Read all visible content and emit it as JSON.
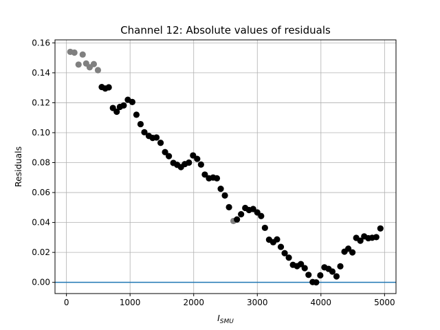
{
  "chart_data": {
    "type": "scatter",
    "title": "Channel 12: Absolute values of residuals",
    "xlabel_main": "I",
    "xlabel_sub": "SMU",
    "ylabel": "Residuals",
    "xlim": [
      -180,
      5180
    ],
    "ylim": [
      -0.0075,
      0.162
    ],
    "xticks": [
      0,
      1000,
      2000,
      3000,
      4000,
      5000
    ],
    "yticks": [
      0.0,
      0.02,
      0.04,
      0.06,
      0.08,
      0.1,
      0.12,
      0.14,
      0.16
    ],
    "ytick_labels": [
      "0.00",
      "0.02",
      "0.04",
      "0.06",
      "0.08",
      "0.10",
      "0.12",
      "0.14",
      "0.16"
    ],
    "grid": true,
    "hline": {
      "y": 0.0,
      "color": "#1f77b4"
    },
    "series": [
      {
        "color": "#808080",
        "points": [
          [
            60,
            0.154
          ],
          [
            125,
            0.1535
          ],
          [
            190,
            0.1455
          ],
          [
            255,
            0.1522
          ],
          [
            310,
            0.1462
          ],
          [
            365,
            0.1437
          ],
          [
            430,
            0.1458
          ],
          [
            495,
            0.1418
          ],
          [
            2625,
            0.041
          ]
        ]
      },
      {
        "color": "#000000",
        "points": [
          [
            555,
            0.1305
          ],
          [
            610,
            0.1295
          ],
          [
            665,
            0.1303
          ],
          [
            730,
            0.1165
          ],
          [
            790,
            0.114
          ],
          [
            840,
            0.1172
          ],
          [
            900,
            0.1182
          ],
          [
            965,
            0.122
          ],
          [
            1035,
            0.1205
          ],
          [
            1100,
            0.112
          ],
          [
            1165,
            0.1057
          ],
          [
            1225,
            0.1003
          ],
          [
            1295,
            0.0978
          ],
          [
            1355,
            0.0965
          ],
          [
            1415,
            0.0968
          ],
          [
            1480,
            0.0932
          ],
          [
            1550,
            0.087
          ],
          [
            1610,
            0.0843
          ],
          [
            1680,
            0.0798
          ],
          [
            1740,
            0.0785
          ],
          [
            1800,
            0.077
          ],
          [
            1860,
            0.079
          ],
          [
            1925,
            0.08
          ],
          [
            1990,
            0.0848
          ],
          [
            2055,
            0.0825
          ],
          [
            2115,
            0.0787
          ],
          [
            2175,
            0.072
          ],
          [
            2240,
            0.0695
          ],
          [
            2305,
            0.07
          ],
          [
            2365,
            0.0695
          ],
          [
            2425,
            0.0625
          ],
          [
            2490,
            0.058
          ],
          [
            2555,
            0.0502
          ],
          [
            2680,
            0.042
          ],
          [
            2745,
            0.0455
          ],
          [
            2810,
            0.0497
          ],
          [
            2870,
            0.0483
          ],
          [
            2935,
            0.049
          ],
          [
            3000,
            0.0467
          ],
          [
            3060,
            0.0443
          ],
          [
            3120,
            0.0364
          ],
          [
            3185,
            0.0285
          ],
          [
            3250,
            0.0268
          ],
          [
            3310,
            0.0287
          ],
          [
            3370,
            0.0237
          ],
          [
            3430,
            0.0195
          ],
          [
            3495,
            0.0165
          ],
          [
            3560,
            0.0117
          ],
          [
            3625,
            0.0108
          ],
          [
            3685,
            0.0122
          ],
          [
            3745,
            0.0095
          ],
          [
            3805,
            0.005
          ],
          [
            3870,
            0.0002
          ],
          [
            3925,
            0.0
          ],
          [
            3990,
            0.0047
          ],
          [
            4055,
            0.01
          ],
          [
            4120,
            0.009
          ],
          [
            4180,
            0.0072
          ],
          [
            4245,
            0.004
          ],
          [
            4305,
            0.0107
          ],
          [
            4370,
            0.0205
          ],
          [
            4430,
            0.0225
          ],
          [
            4495,
            0.02
          ],
          [
            4555,
            0.0297
          ],
          [
            4620,
            0.0278
          ],
          [
            4680,
            0.0307
          ],
          [
            4745,
            0.0295
          ],
          [
            4805,
            0.0298
          ],
          [
            4870,
            0.0302
          ],
          [
            4935,
            0.036
          ]
        ]
      }
    ]
  }
}
